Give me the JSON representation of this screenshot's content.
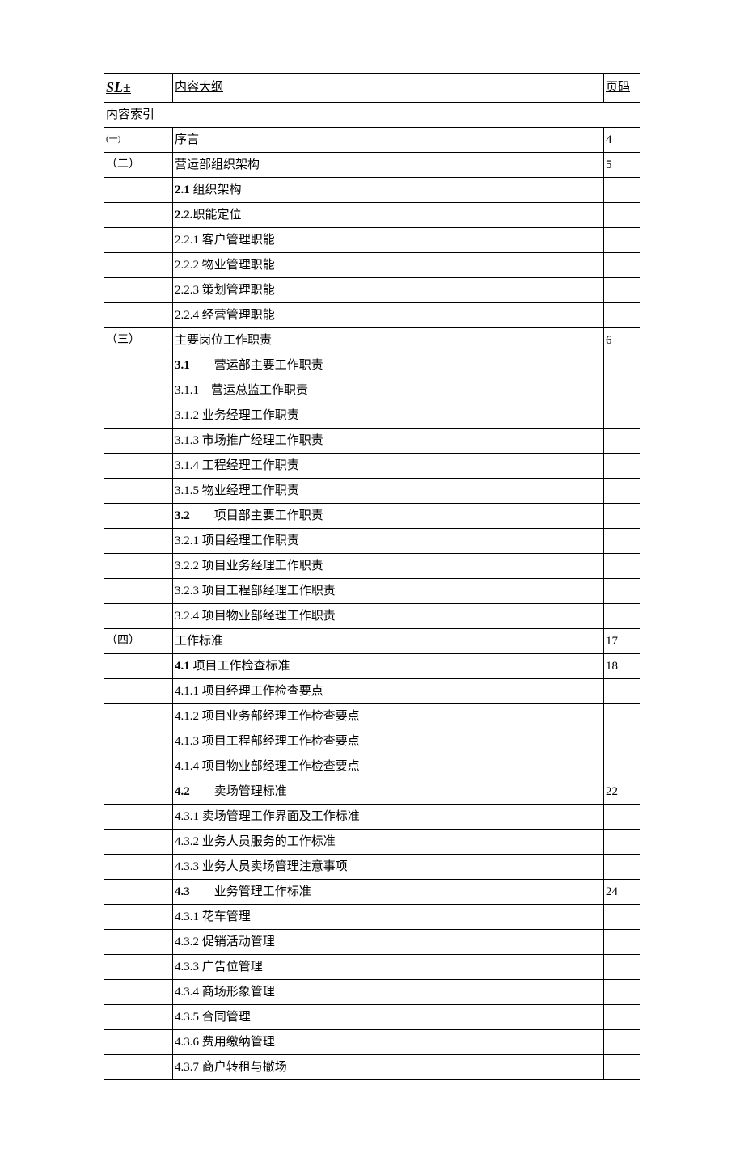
{
  "table": {
    "headers": {
      "col1": "SL±",
      "col2": "内容大纲",
      "col3": "页码"
    },
    "index_label": "内容索引",
    "rows": [
      {
        "num": "(一)",
        "num_class": "small-num",
        "content": "序言",
        "page": "4"
      },
      {
        "num": "（二）",
        "num_class": "cn-num",
        "content": "营运部组织架构",
        "page": "5"
      },
      {
        "num": "",
        "content": "2.1 组织架构",
        "bold_prefix": "2.1",
        "rest": " 组织架构",
        "page": ""
      },
      {
        "num": "",
        "content": "2.2.职能定位",
        "bold_prefix": "2.2.",
        "rest": "职能定位",
        "page": ""
      },
      {
        "num": "",
        "content": "2.2.1 客户管理职能",
        "page": ""
      },
      {
        "num": "",
        "content": "2.2.2 物业管理职能",
        "page": ""
      },
      {
        "num": "",
        "content": "2.2.3 策划管理职能",
        "page": ""
      },
      {
        "num": "",
        "content": "2.2.4 经营管理职能",
        "page": ""
      },
      {
        "num": "（三）",
        "num_class": "cn-num",
        "content": "主要岗位工作职责",
        "page": "6"
      },
      {
        "num": "",
        "content": "",
        "bold_prefix": "3.1",
        "rest": "　　营运部主要工作职责",
        "page": ""
      },
      {
        "num": "",
        "content": "3.1.1　营运总监工作职责",
        "page": ""
      },
      {
        "num": "",
        "content": "3.1.2 业务经理工作职责",
        "page": ""
      },
      {
        "num": "",
        "content": "3.1.3 市场推广经理工作职责",
        "page": ""
      },
      {
        "num": "",
        "content": "3.1.4 工程经理工作职责",
        "page": ""
      },
      {
        "num": "",
        "content": "3.1.5 物业经理工作职责",
        "page": ""
      },
      {
        "num": "",
        "content": "",
        "bold_prefix": "3.2",
        "rest": "　　项目部主要工作职责",
        "page": ""
      },
      {
        "num": "",
        "content": "3.2.1 项目经理工作职责",
        "page": ""
      },
      {
        "num": "",
        "content": "3.2.2 项目业务经理工作职责",
        "page": ""
      },
      {
        "num": "",
        "content": "3.2.3 项目工程部经理工作职责",
        "page": ""
      },
      {
        "num": "",
        "content": "3.2.4 项目物业部经理工作职责",
        "page": ""
      },
      {
        "num": "（四）",
        "num_class": "cn-num",
        "content": "工作标准",
        "page": "17"
      },
      {
        "num": "",
        "content": "",
        "bold_prefix": "4.1",
        "rest": " 项目工作检查标准",
        "page": "18"
      },
      {
        "num": "",
        "content": "4.1.1 项目经理工作检查要点",
        "page": ""
      },
      {
        "num": "",
        "content": "4.1.2 项目业务部经理工作检查要点",
        "page": ""
      },
      {
        "num": "",
        "content": "4.1.3 项目工程部经理工作检查要点",
        "page": ""
      },
      {
        "num": "",
        "content": "4.1.4 项目物业部经理工作检查要点",
        "page": ""
      },
      {
        "num": "",
        "content": "",
        "bold_prefix": "4.2",
        "rest": "　　卖场管理标准",
        "page": "22"
      },
      {
        "num": "",
        "content": "4.3.1 卖场管理工作界面及工作标准",
        "page": ""
      },
      {
        "num": "",
        "content": "4.3.2 业务人员服务的工作标准",
        "page": ""
      },
      {
        "num": "",
        "content": "4.3.3 业务人员卖场管理注意事项",
        "page": ""
      },
      {
        "num": "",
        "content": "",
        "bold_prefix": "4.3",
        "rest": "　　业务管理工作标准",
        "page": "24"
      },
      {
        "num": "",
        "content": "4.3.1 花车管理",
        "page": ""
      },
      {
        "num": "",
        "content": "4.3.2 促销活动管理",
        "page": ""
      },
      {
        "num": "",
        "content": "4.3.3 广告位管理",
        "page": ""
      },
      {
        "num": "",
        "content": "4.3.4 商场形象管理",
        "page": ""
      },
      {
        "num": "",
        "content": "4.3.5 合同管理",
        "page": ""
      },
      {
        "num": "",
        "content": "4.3.6 费用缴纳管理",
        "page": ""
      },
      {
        "num": "",
        "content": "4.3.7 商户转租与撤场",
        "page": ""
      }
    ]
  }
}
